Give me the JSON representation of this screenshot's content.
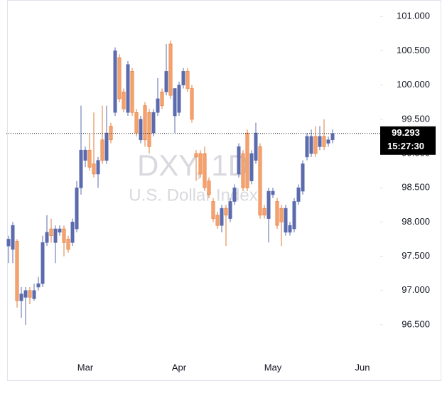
{
  "chart_data": {
    "type": "candlestick",
    "watermark": "DXY, 1D",
    "subtitle": "U.S. Dollar Index",
    "categories": [
      null,
      null,
      null,
      null,
      null,
      null,
      null,
      null,
      null,
      null,
      null,
      null,
      null,
      null,
      null,
      null,
      null,
      null,
      "Mar",
      null,
      null,
      null,
      null,
      null,
      null,
      null,
      null,
      null,
      null,
      null,
      null,
      null,
      null,
      null,
      null,
      null,
      null,
      null,
      null,
      null,
      "Apr",
      null,
      null,
      null,
      null,
      null,
      null,
      null,
      null,
      null,
      null,
      null,
      null,
      null,
      null,
      null,
      null,
      null,
      null,
      null,
      null,
      null,
      "May",
      null,
      null,
      null,
      null,
      null,
      null,
      null,
      null,
      null,
      null,
      null,
      null,
      null,
      null,
      null,
      null,
      null,
      null,
      null,
      null,
      "Jun"
    ],
    "open": [
      97.65,
      97.6,
      97.72,
      96.85,
      96.9,
      97.0,
      96.88,
      97.05,
      97.1,
      97.7,
      97.9,
      97.7,
      97.85,
      97.9,
      97.75,
      97.7,
      97.9,
      98.5,
      98.9,
      99.05,
      98.85,
      98.7,
      99.2,
      98.9,
      99.4,
      99.6,
      100.4,
      99.9,
      99.6,
      100.2,
      99.6,
      99.2,
      99.7,
      99.6,
      99.3,
      99.6,
      99.9,
      99.9,
      100.6,
      99.55,
      99.6,
      100.0,
      100.2,
      99.95,
      99.0,
      99.0,
      99.0,
      98.6,
      98.3,
      98.1,
      97.95,
      98.2,
      98.05,
      98.3,
      98.7,
      99.0,
      99.3,
      98.6,
      98.9,
      99.1,
      98.2,
      98.05,
      98.4,
      98.3,
      98.2,
      97.85,
      97.85,
      97.9,
      98.3,
      98.45,
      98.95,
      99.0,
      99.25,
      99.1,
      99.25,
      99.15,
      99.2,
      null,
      null,
      null,
      null,
      null,
      null,
      null
    ],
    "high": [
      97.8,
      98.0,
      97.75,
      97.05,
      97.05,
      97.05,
      97.1,
      97.2,
      97.8,
      98.1,
      98.05,
      97.95,
      97.95,
      97.95,
      97.8,
      98.05,
      98.6,
      99.7,
      99.1,
      99.3,
      99.6,
      98.95,
      99.7,
      99.7,
      99.45,
      100.55,
      100.45,
      99.95,
      100.35,
      100.25,
      99.65,
      99.55,
      99.75,
      99.65,
      99.65,
      100.1,
      99.95,
      100.6,
      100.65,
      99.95,
      100.05,
      100.25,
      100.25,
      100.0,
      99.05,
      99.05,
      99.1,
      98.65,
      98.35,
      98.15,
      98.25,
      98.25,
      98.35,
      98.55,
      99.15,
      99.05,
      99.35,
      99.05,
      99.45,
      99.15,
      98.25,
      98.5,
      98.5,
      98.35,
      98.25,
      98.25,
      98.0,
      98.35,
      98.55,
      98.9,
      99.3,
      99.35,
      99.4,
      99.4,
      99.5,
      99.25,
      99.35,
      null,
      null,
      null,
      null,
      null,
      null,
      null
    ],
    "low": [
      97.4,
      97.4,
      96.75,
      96.6,
      96.5,
      96.8,
      96.85,
      97.0,
      97.05,
      97.65,
      97.7,
      97.4,
      97.8,
      97.5,
      97.55,
      97.65,
      97.85,
      98.4,
      98.8,
      98.75,
      98.65,
      98.5,
      98.85,
      98.85,
      99.15,
      99.55,
      99.75,
      99.6,
      99.55,
      99.55,
      99.25,
      99.15,
      99.1,
      99.0,
      99.25,
      99.55,
      99.65,
      99.85,
      99.8,
      99.3,
      99.55,
      99.95,
      99.9,
      99.45,
      98.6,
      98.65,
      98.45,
      98.35,
      98.0,
      97.9,
      97.85,
      97.65,
      98.0,
      98.25,
      98.65,
      98.45,
      98.45,
      98.55,
      98.85,
      98.05,
      98.05,
      97.7,
      98.35,
      97.9,
      97.65,
      97.8,
      97.8,
      97.85,
      98.25,
      98.4,
      98.9,
      98.95,
      98.95,
      99.05,
      99.05,
      99.1,
      99.15,
      null,
      null,
      null,
      null,
      null,
      null,
      null
    ],
    "close": [
      97.75,
      97.95,
      96.85,
      96.95,
      97.0,
      96.9,
      97.0,
      97.1,
      97.7,
      97.85,
      97.8,
      97.9,
      97.9,
      97.7,
      97.6,
      98.0,
      98.5,
      99.05,
      99.05,
      98.8,
      98.7,
      98.9,
      98.9,
      99.3,
      99.2,
      100.5,
      99.8,
      99.65,
      100.3,
      99.6,
      99.3,
      99.5,
      99.2,
      99.1,
      99.6,
      99.8,
      99.7,
      100.2,
      99.85,
      99.95,
      100.0,
      100.2,
      99.95,
      99.5,
      98.95,
      98.7,
      98.5,
      98.4,
      98.05,
      97.95,
      98.2,
      98.1,
      98.3,
      98.5,
      99.1,
      98.5,
      98.5,
      99.0,
      99.3,
      98.1,
      98.1,
      98.45,
      98.45,
      97.95,
      98.0,
      98.2,
      97.95,
      98.3,
      98.5,
      98.85,
      99.25,
      99.25,
      99.0,
      99.25,
      99.1,
      99.2,
      99.293,
      null,
      null,
      null,
      null,
      null,
      null,
      null
    ],
    "up_color": "#5b6bad",
    "down_color": "#f5a26f",
    "down_edge": "#e07b3a",
    "ylim": [
      95.69,
      101.19
    ],
    "yticks": [
      {
        "value": 96.5,
        "label": "96.500"
      },
      {
        "value": 97,
        "label": "97.000"
      },
      {
        "value": 97.5,
        "label": "97.500"
      },
      {
        "value": 98,
        "label": "98.000"
      },
      {
        "value": 98.5,
        "label": "98.500"
      },
      {
        "value": 99,
        "label": "99.000"
      },
      {
        "value": 99.5,
        "label": "99.500"
      },
      {
        "value": 100,
        "label": "100.000"
      },
      {
        "value": 100.5,
        "label": "100.500"
      },
      {
        "value": 101,
        "label": "101.000"
      }
    ],
    "last_price": 99.293,
    "countdown": "15:27:30"
  }
}
